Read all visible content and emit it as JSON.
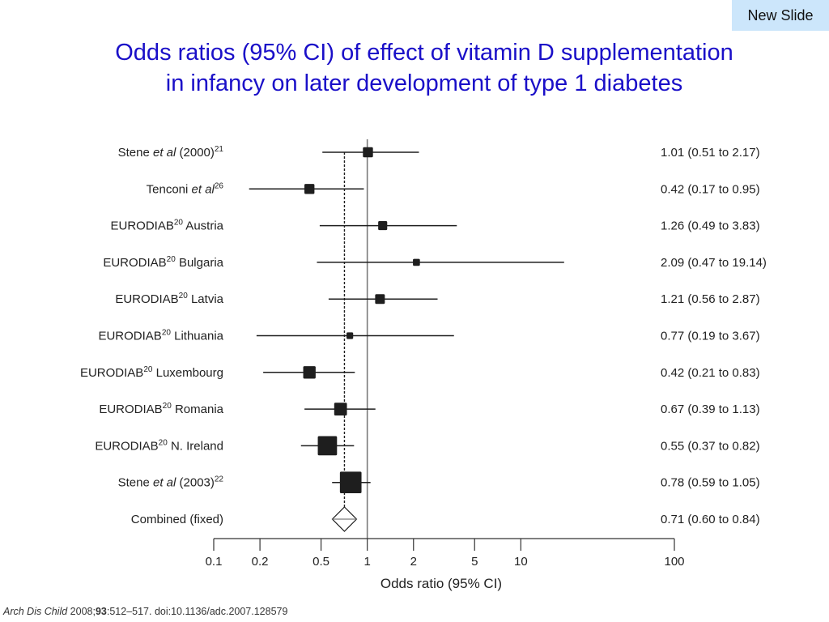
{
  "badge": {
    "label": "New Slide"
  },
  "title": {
    "line1": "Odds ratios (95% CI) of effect of vitamin D supplementation",
    "line2": "in infancy on later development of type 1 diabetes"
  },
  "colors": {
    "title": "#1a0fc8",
    "badge_bg": "#cce6fb",
    "marks": "#1e1e1e",
    "reference_line": "#7a7a7a"
  },
  "citation": {
    "journal": "Arch Dis Child",
    "year_pre": " 2008;",
    "volume": "93",
    "rest": ":512–517. doi:10.1136/adc.2007.128579"
  },
  "chart_data": {
    "type": "forest",
    "title": "Odds ratios (95% CI) of effect of vitamin D supplementation in infancy on later development of type 1 diabetes",
    "xlabel": "Odds ratio (95% CI)",
    "xscale": "log",
    "xlim": [
      0.1,
      100
    ],
    "xticks": [
      0.1,
      0.2,
      0.5,
      1,
      2,
      5,
      10,
      100
    ],
    "xtick_labels": [
      "0.1",
      "0.2",
      "0.5",
      "1",
      "2",
      "5",
      "10",
      "100"
    ],
    "reference_line": 1,
    "pooled_line": 0.71,
    "studies": [
      {
        "label": "Stene",
        "italic": " et al",
        "suffix": " (2000)",
        "sup": "21",
        "or": 1.01,
        "lo": 0.51,
        "hi": 2.17,
        "text": "1.01 (0.51 to 2.17)",
        "weight": 2
      },
      {
        "label": "Tenconi",
        "italic": " et al",
        "suffix": "",
        "sup": "26",
        "or": 0.42,
        "lo": 0.17,
        "hi": 0.95,
        "text": "0.42 (0.17 to 0.95)",
        "weight": 2
      },
      {
        "label": "EURODIAB",
        "italic": "",
        "suffix": " Austria",
        "sup": "20",
        "sup_after_label": true,
        "or": 1.26,
        "lo": 0.49,
        "hi": 3.83,
        "text": "1.26 (0.49 to 3.83)",
        "weight": 1.7
      },
      {
        "label": "EURODIAB",
        "italic": "",
        "suffix": " Bulgaria",
        "sup": "20",
        "sup_after_label": true,
        "or": 2.09,
        "lo": 0.47,
        "hi": 19.14,
        "text": "2.09 (0.47 to 19.14)",
        "weight": 1.1
      },
      {
        "label": "EURODIAB",
        "italic": "",
        "suffix": " Latvia",
        "sup": "20",
        "sup_after_label": true,
        "or": 1.21,
        "lo": 0.56,
        "hi": 2.87,
        "text": "1.21 (0.56 to 2.87)",
        "weight": 1.9
      },
      {
        "label": "EURODIAB",
        "italic": "",
        "suffix": " Lithuania",
        "sup": "20",
        "sup_after_label": true,
        "or": 0.77,
        "lo": 0.19,
        "hi": 3.67,
        "text": "0.77 (0.19 to 3.67)",
        "weight": 1.0
      },
      {
        "label": "EURODIAB",
        "italic": "",
        "suffix": " Luxembourg",
        "sup": "20",
        "sup_after_label": true,
        "or": 0.42,
        "lo": 0.21,
        "hi": 0.83,
        "text": "0.42 (0.21 to 0.83)",
        "weight": 2.7
      },
      {
        "label": "EURODIAB",
        "italic": "",
        "suffix": " Romania",
        "sup": "20",
        "sup_after_label": true,
        "or": 0.67,
        "lo": 0.39,
        "hi": 1.13,
        "text": "0.67 (0.39 to 1.13)",
        "weight": 2.8
      },
      {
        "label": "EURODIAB",
        "italic": "",
        "suffix": " N. Ireland",
        "sup": "20",
        "sup_after_label": true,
        "or": 0.55,
        "lo": 0.37,
        "hi": 0.82,
        "text": "0.55 (0.37 to 0.82)",
        "weight": 4.7
      },
      {
        "label": "Stene",
        "italic": " et al",
        "suffix": " (2003)",
        "sup": "22",
        "or": 0.78,
        "lo": 0.59,
        "hi": 1.05,
        "text": "0.78 (0.59 to 1.05)",
        "weight": 5.4
      }
    ],
    "combined": {
      "label": "Combined (fixed)",
      "or": 0.71,
      "lo": 0.6,
      "hi": 0.84,
      "text": "0.71 (0.60 to 0.84)"
    }
  }
}
